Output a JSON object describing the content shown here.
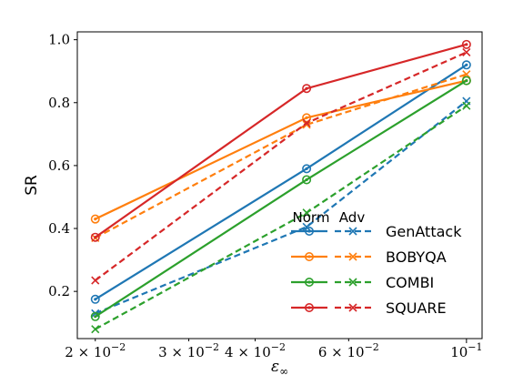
{
  "chart_data": {
    "type": "line",
    "xscale": "log",
    "xlabel": "ε∞",
    "ylabel": "SR",
    "xlim": [
      0.0185,
      0.107
    ],
    "ylim": [
      0.05,
      1.025
    ],
    "x": [
      0.02,
      0.05,
      0.1
    ],
    "x_ticks": [
      {
        "value": 0.02,
        "base": "2 × 10",
        "exp": "−2"
      },
      {
        "value": 0.03,
        "base": "3 × 10",
        "exp": "−2"
      },
      {
        "value": 0.04,
        "base": "4 × 10",
        "exp": "−2"
      },
      {
        "value": 0.06,
        "base": "6 × 10",
        "exp": "−2"
      },
      {
        "value": 0.1,
        "base": "10",
        "exp": "−1"
      }
    ],
    "y_ticks": [
      {
        "value": 0.2,
        "label": "0.2"
      },
      {
        "value": 0.4,
        "label": "0.4"
      },
      {
        "value": 0.6,
        "label": "0.6"
      },
      {
        "value": 0.8,
        "label": "0.8"
      },
      {
        "value": 1.0,
        "label": "1.0"
      }
    ],
    "legend": {
      "placement": "lower-right",
      "header_norm": "Norm",
      "header_adv": "Adv"
    },
    "series": [
      {
        "name": "GenAttack",
        "color": "#1f77b4",
        "norm": [
          0.175,
          0.59,
          0.92
        ],
        "adv": [
          0.13,
          0.405,
          0.805
        ]
      },
      {
        "name": "BOBYQA",
        "color": "#ff7f0e",
        "norm": [
          0.43,
          0.752,
          0.87
        ],
        "adv": [
          0.37,
          0.73,
          0.89
        ]
      },
      {
        "name": "COMBI",
        "color": "#2ca02c",
        "norm": [
          0.12,
          0.555,
          0.87
        ],
        "adv": [
          0.08,
          0.45,
          0.79
        ]
      },
      {
        "name": "SQUARE",
        "color": "#d62728",
        "norm": [
          0.372,
          0.845,
          0.985
        ],
        "adv": [
          0.235,
          0.735,
          0.96
        ]
      }
    ]
  }
}
